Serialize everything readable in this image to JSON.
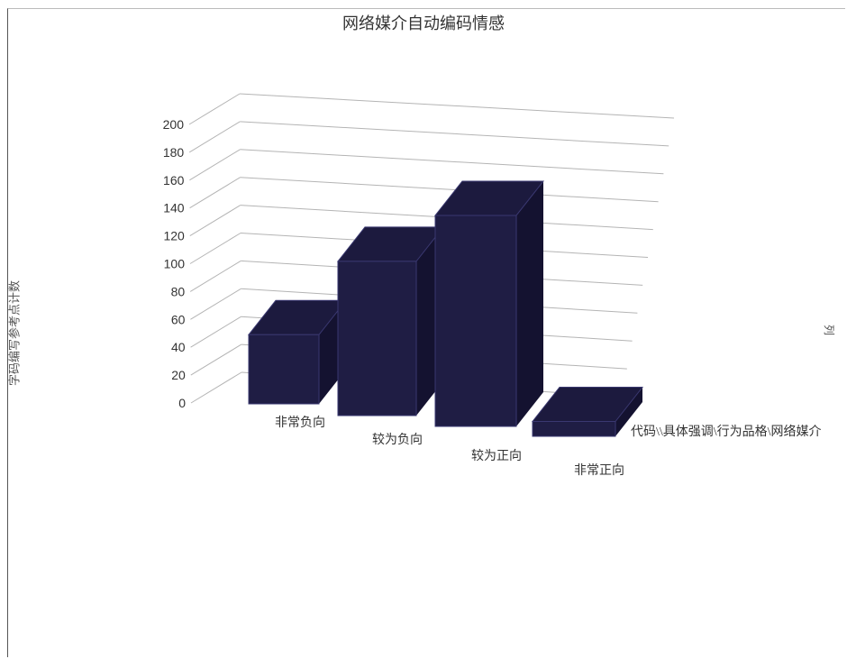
{
  "chart_data": {
    "type": "bar",
    "title": "网络媒介自动编码情感",
    "ylabel": "字码编写参考点计数",
    "series_axis_label": "列",
    "depth_axis_label": "代码\\\\具体强调\\行为品格\\网络媒介",
    "categories": [
      "非常负向",
      "较为负向",
      "较为正向",
      "非常正向"
    ],
    "values": [
      59,
      118,
      151,
      10
    ],
    "ylim": [
      0,
      200
    ],
    "yticks": [
      0,
      20,
      40,
      60,
      80,
      100,
      120,
      140,
      160,
      180,
      200
    ],
    "grid": true,
    "projection": "3d",
    "colors": {
      "bar_front": "#1f1d44",
      "bar_top": "#1c1a3e",
      "bar_side": "#141230",
      "grid": "#b4b4b4"
    }
  }
}
